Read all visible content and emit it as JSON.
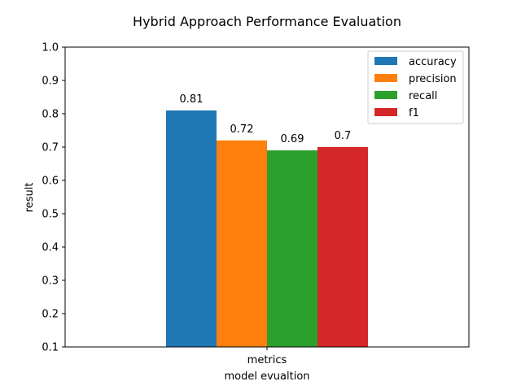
{
  "chart_data": {
    "type": "bar",
    "title": "Hybrid Approach Performance Evaluation",
    "xlabel": "model evualtion",
    "ylabel": "result",
    "categories": [
      "metrics"
    ],
    "series": [
      {
        "name": "accuracy",
        "values": [
          0.81
        ],
        "label": "0.81",
        "color": "#1f77b4"
      },
      {
        "name": "precision",
        "values": [
          0.72
        ],
        "label": "0.72",
        "color": "#ff7f0e"
      },
      {
        "name": "recall",
        "values": [
          0.69
        ],
        "label": "0.69",
        "color": "#2ca02c"
      },
      {
        "name": "f1",
        "values": [
          0.7
        ],
        "label": "0.7",
        "color": "#d62728"
      }
    ],
    "ylim": [
      0.1,
      1.0
    ],
    "yticks": [
      "0.1",
      "0.2",
      "0.3",
      "0.4",
      "0.5",
      "0.6",
      "0.7",
      "0.8",
      "0.9",
      "1.0"
    ],
    "grid": false,
    "legend_position": "top-right"
  }
}
